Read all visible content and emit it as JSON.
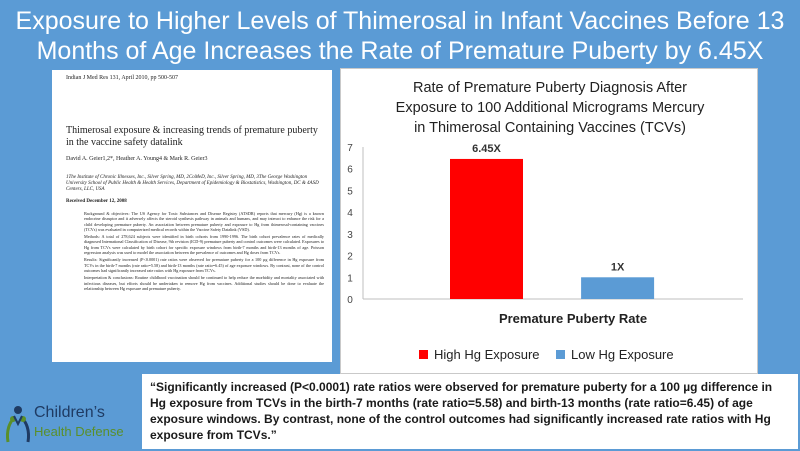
{
  "title": {
    "line1": "Exposure to Higher Levels of Thimerosal in Infant Vaccines Before 13",
    "line2": "Months of Age Increases the Rate of Premature Puberty by 6.45X"
  },
  "paper": {
    "journal": "Indian J Med Res 131, April 2010, pp 500-507",
    "title": "Thimerosal exposure & increasing trends of premature puberty in the vaccine safety datalink",
    "authors": "David A. Geier1,2*, Heather A. Young4 & Mark R. Geier3",
    "affiliation": "1The Institute of Chronic Illnesses, Inc., Silver Spring, MD, 2CoMeD, Inc., Silver Spring, MD, 3The George Washington University School of Public Health & Health Services, Department of Epidemiology & Biostatistics, Washington, DC & 4ASD Centers, LLC, USA",
    "received": "Received December 12, 2008",
    "abstract_background": "Background & objectives: The US Agency for Toxic Substances and Disease Registry (ATSDR) reports that mercury (Hg) is a known endocrine disruptor and it adversely affects the steroid synthesis pathway in animals and humans, and may interact to enhance the risk for a child developing premature puberty. An association between premature puberty and exposure to Hg from thimerosal-containing vaccines (TCVs) was evaluated in computerized medical records within the Vaccine Safety Datalink (VSD).",
    "abstract_methods": "Methods: A total of 278,624 subjects were identified in birth cohorts from 1990-1996. The birth cohort prevalence rates of medically diagnosed International Classification of Disease, 9th revision (ICD-9) premature puberty and control outcomes were calculated. Exposures to Hg from TCVs were calculated by birth cohort for specific exposure windows from birth-7 months and birth-13 months of age. Poisson regression analysis was used to model the association between the prevalence of outcomes and Hg doses from TCVs.",
    "abstract_results": "Results: Significantly increased (P<0.0001) rate ratios were observed for premature puberty for a 100 µg difference in Hg exposure from TCVs in the birth-7 months (rate ratio=5.58) and birth-13 months (rate ratio=6.45) of age exposure windows. By contrast, none of the control outcomes had significantly increased rate ratios with Hg exposure from TCVs.",
    "abstract_conclusions": "Interpretation & conclusions: Routine childhood vaccination should be continued to help reduce the morbidity and mortality associated with infectious diseases, but efforts should be undertaken to remove Hg from vaccines. Additional studies should be done to evaluate the relationship between Hg exposure and premature puberty."
  },
  "chart_title": {
    "line1": "Rate of Premature Puberty Diagnosis After",
    "line2": "Exposure to 100 Additional Micrograms Mercury",
    "line3": "in Thimerosal Containing Vaccines (TCVs)"
  },
  "chart_data": {
    "type": "bar",
    "title": "Rate of Premature Puberty Diagnosis After Exposure to 100 Additional Micrograms Mercury in Thimerosal Containing Vaccines (TCVs)",
    "xlabel": "Premature Puberty Rate",
    "ylabel": "",
    "ylim": [
      0,
      7
    ],
    "yticks": [
      "0",
      "1",
      "2",
      "3",
      "4",
      "5",
      "6",
      "7"
    ],
    "categories": [
      "Premature Puberty Rate"
    ],
    "series": [
      {
        "name": "High Hg Exposure",
        "values": [
          6.45
        ],
        "label": "6.45X",
        "color": "#ff0000"
      },
      {
        "name": "Low Hg Exposure",
        "values": [
          1
        ],
        "label": "1X",
        "color": "#5b9bd5"
      }
    ],
    "grid": false,
    "legend": "bottom"
  },
  "quote": "“Significantly increased (P<0.0001) rate ratios were observed for premature puberty for a 100 µg difference in Hg exposure from TCVs in the birth-7 months (rate ratio=5.58) and birth-13 months (rate ratio=6.45) of age exposure windows. By contrast, none of the control outcomes had significantly increased rate ratios with Hg exposure from TCVs.”",
  "logo": {
    "line1": "Children’s",
    "line2": "Health Defense",
    "icon": "family-hands-icon",
    "colors": {
      "primary": "#1f3b63",
      "secondary": "#5a8f2a"
    }
  },
  "colors": {
    "background": "#5b9bd5",
    "high": "#ff0000",
    "low": "#5b9bd5"
  }
}
